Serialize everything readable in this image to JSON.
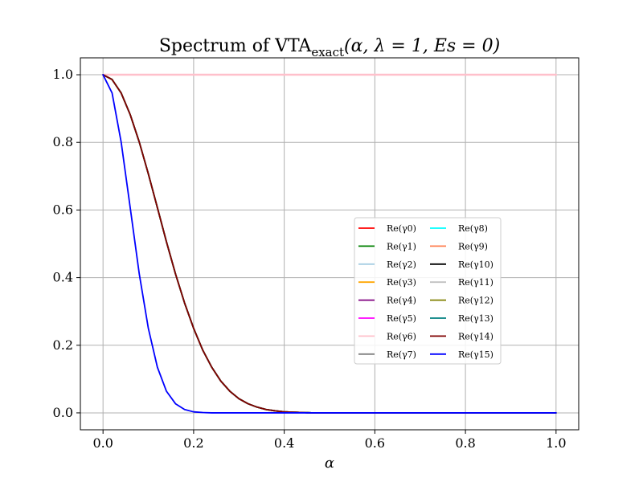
{
  "chart_data": {
    "type": "line",
    "title": "Spectrum of VTA_exact(α, λ = 1,  Es = 0)",
    "title_parts": {
      "main": "Spectrum of VTA",
      "subscript": "exact",
      "args": "(α, λ = 1,  Es = 0)"
    },
    "xlabel": "α",
    "ylabel": "",
    "xlim": [
      -0.05,
      1.05
    ],
    "ylim": [
      -0.05,
      1.05
    ],
    "xticks": [
      0.0,
      0.2,
      0.4,
      0.6,
      0.8,
      1.0
    ],
    "yticks": [
      0.0,
      0.2,
      0.4,
      0.6,
      0.8,
      1.0
    ],
    "xtick_labels": [
      "0.0",
      "0.2",
      "0.4",
      "0.6",
      "0.8",
      "1.0"
    ],
    "ytick_labels": [
      "0.0",
      "0.2",
      "0.4",
      "0.6",
      "0.8",
      "1.0"
    ],
    "grid": true,
    "legend_position": "center-right",
    "legend_columns": 2,
    "x": [
      0.0,
      0.02,
      0.04,
      0.06,
      0.08,
      0.1,
      0.12,
      0.14,
      0.16,
      0.18,
      0.2,
      0.22,
      0.24,
      0.26,
      0.28,
      0.3,
      0.32,
      0.34,
      0.36,
      0.38,
      0.4,
      0.42,
      0.44,
      0.46,
      0.48,
      0.5,
      0.55,
      0.6,
      0.7,
      0.8,
      0.9,
      1.0
    ],
    "series": [
      {
        "name": "Re(γ0)",
        "color": "#ff0000",
        "values": [
          1.0,
          1.0,
          1.0,
          1.0,
          1.0,
          1.0,
          1.0,
          1.0,
          1.0,
          1.0,
          1.0,
          1.0,
          1.0,
          1.0,
          1.0,
          1.0,
          1.0,
          1.0,
          1.0,
          1.0,
          1.0,
          1.0,
          1.0,
          1.0,
          1.0,
          1.0,
          1.0,
          1.0,
          1.0,
          1.0,
          1.0,
          1.0
        ]
      },
      {
        "name": "Re(γ1)",
        "color": "#008000",
        "values": [
          1.0,
          1.0,
          1.0,
          1.0,
          1.0,
          1.0,
          1.0,
          1.0,
          1.0,
          1.0,
          1.0,
          1.0,
          1.0,
          1.0,
          1.0,
          1.0,
          1.0,
          1.0,
          1.0,
          1.0,
          1.0,
          1.0,
          1.0,
          1.0,
          1.0,
          1.0,
          1.0,
          1.0,
          1.0,
          1.0,
          1.0,
          1.0
        ]
      },
      {
        "name": "Re(γ2)",
        "color": "#a6cee3",
        "values": [
          1.0,
          1.0,
          1.0,
          1.0,
          1.0,
          1.0,
          1.0,
          1.0,
          1.0,
          1.0,
          1.0,
          1.0,
          1.0,
          1.0,
          1.0,
          1.0,
          1.0,
          1.0,
          1.0,
          1.0,
          1.0,
          1.0,
          1.0,
          1.0,
          1.0,
          1.0,
          1.0,
          1.0,
          1.0,
          1.0,
          1.0,
          1.0
        ]
      },
      {
        "name": "Re(γ3)",
        "color": "#ffa500",
        "values": [
          1.0,
          1.0,
          1.0,
          1.0,
          1.0,
          1.0,
          1.0,
          1.0,
          1.0,
          1.0,
          1.0,
          1.0,
          1.0,
          1.0,
          1.0,
          1.0,
          1.0,
          1.0,
          1.0,
          1.0,
          1.0,
          1.0,
          1.0,
          1.0,
          1.0,
          1.0,
          1.0,
          1.0,
          1.0,
          1.0,
          1.0,
          1.0
        ]
      },
      {
        "name": "Re(γ4)",
        "color": "#800080",
        "values": [
          1.0,
          1.0,
          1.0,
          1.0,
          1.0,
          1.0,
          1.0,
          1.0,
          1.0,
          1.0,
          1.0,
          1.0,
          1.0,
          1.0,
          1.0,
          1.0,
          1.0,
          1.0,
          1.0,
          1.0,
          1.0,
          1.0,
          1.0,
          1.0,
          1.0,
          1.0,
          1.0,
          1.0,
          1.0,
          1.0,
          1.0,
          1.0
        ]
      },
      {
        "name": "Re(γ5)",
        "color": "#ff00ff",
        "values": [
          1.0,
          1.0,
          1.0,
          1.0,
          1.0,
          1.0,
          1.0,
          1.0,
          1.0,
          1.0,
          1.0,
          1.0,
          1.0,
          1.0,
          1.0,
          1.0,
          1.0,
          1.0,
          1.0,
          1.0,
          1.0,
          1.0,
          1.0,
          1.0,
          1.0,
          1.0,
          1.0,
          1.0,
          1.0,
          1.0,
          1.0,
          1.0
        ]
      },
      {
        "name": "Re(γ6)",
        "color": "#ffc0cb",
        "values": [
          1.0,
          1.0,
          1.0,
          1.0,
          1.0,
          1.0,
          1.0,
          1.0,
          1.0,
          1.0,
          1.0,
          1.0,
          1.0,
          1.0,
          1.0,
          1.0,
          1.0,
          1.0,
          1.0,
          1.0,
          1.0,
          1.0,
          1.0,
          1.0,
          1.0,
          1.0,
          1.0,
          1.0,
          1.0,
          1.0,
          1.0,
          1.0
        ]
      },
      {
        "name": "Re(γ7)",
        "color": "#808080",
        "values": [
          1.0,
          0.986,
          0.946,
          0.882,
          0.801,
          0.707,
          0.607,
          0.506,
          0.411,
          0.325,
          0.25,
          0.186,
          0.135,
          0.094,
          0.064,
          0.042,
          0.027,
          0.017,
          0.01,
          0.006,
          0.003,
          0.002,
          0.001,
          0.0,
          0.0,
          0.0,
          0.0,
          0.0,
          0.0,
          0.0,
          0.0,
          0.0
        ]
      },
      {
        "name": "Re(γ8)",
        "color": "#00ffff",
        "values": [
          1.0,
          0.986,
          0.946,
          0.882,
          0.801,
          0.707,
          0.607,
          0.506,
          0.411,
          0.325,
          0.25,
          0.186,
          0.135,
          0.094,
          0.064,
          0.042,
          0.027,
          0.017,
          0.01,
          0.006,
          0.003,
          0.002,
          0.001,
          0.0,
          0.0,
          0.0,
          0.0,
          0.0,
          0.0,
          0.0,
          0.0,
          0.0
        ]
      },
      {
        "name": "Re(γ9)",
        "color": "#ff7f50",
        "values": [
          1.0,
          0.986,
          0.946,
          0.882,
          0.801,
          0.707,
          0.607,
          0.506,
          0.411,
          0.325,
          0.25,
          0.186,
          0.135,
          0.094,
          0.064,
          0.042,
          0.027,
          0.017,
          0.01,
          0.006,
          0.003,
          0.002,
          0.001,
          0.0,
          0.0,
          0.0,
          0.0,
          0.0,
          0.0,
          0.0,
          0.0,
          0.0
        ]
      },
      {
        "name": "Re(γ10)",
        "color": "#000000",
        "values": [
          1.0,
          0.986,
          0.946,
          0.882,
          0.801,
          0.707,
          0.607,
          0.506,
          0.411,
          0.325,
          0.25,
          0.186,
          0.135,
          0.094,
          0.064,
          0.042,
          0.027,
          0.017,
          0.01,
          0.006,
          0.003,
          0.002,
          0.001,
          0.0,
          0.0,
          0.0,
          0.0,
          0.0,
          0.0,
          0.0,
          0.0,
          0.0
        ]
      },
      {
        "name": "Re(γ11)",
        "color": "#c0c0c0",
        "values": [
          1.0,
          0.986,
          0.946,
          0.882,
          0.801,
          0.707,
          0.607,
          0.506,
          0.411,
          0.325,
          0.25,
          0.186,
          0.135,
          0.094,
          0.064,
          0.042,
          0.027,
          0.017,
          0.01,
          0.006,
          0.003,
          0.002,
          0.001,
          0.0,
          0.0,
          0.0,
          0.0,
          0.0,
          0.0,
          0.0,
          0.0,
          0.0
        ]
      },
      {
        "name": "Re(γ12)",
        "color": "#808000",
        "values": [
          1.0,
          0.986,
          0.946,
          0.882,
          0.801,
          0.707,
          0.607,
          0.506,
          0.411,
          0.325,
          0.25,
          0.186,
          0.135,
          0.094,
          0.064,
          0.042,
          0.027,
          0.017,
          0.01,
          0.006,
          0.003,
          0.002,
          0.001,
          0.0,
          0.0,
          0.0,
          0.0,
          0.0,
          0.0,
          0.0,
          0.0,
          0.0
        ]
      },
      {
        "name": "Re(γ13)",
        "color": "#008080",
        "values": [
          1.0,
          0.986,
          0.946,
          0.882,
          0.801,
          0.707,
          0.607,
          0.506,
          0.411,
          0.325,
          0.25,
          0.186,
          0.135,
          0.094,
          0.064,
          0.042,
          0.027,
          0.017,
          0.01,
          0.006,
          0.003,
          0.002,
          0.001,
          0.0,
          0.0,
          0.0,
          0.0,
          0.0,
          0.0,
          0.0,
          0.0,
          0.0
        ]
      },
      {
        "name": "Re(γ14)",
        "color": "#800000",
        "values": [
          1.0,
          0.986,
          0.946,
          0.882,
          0.801,
          0.707,
          0.607,
          0.506,
          0.411,
          0.325,
          0.25,
          0.186,
          0.135,
          0.094,
          0.064,
          0.042,
          0.027,
          0.017,
          0.01,
          0.006,
          0.003,
          0.002,
          0.001,
          0.0,
          0.0,
          0.0,
          0.0,
          0.0,
          0.0,
          0.0,
          0.0,
          0.0
        ]
      },
      {
        "name": "Re(γ15)",
        "color": "#0000ff",
        "values": [
          1.0,
          0.946,
          0.801,
          0.607,
          0.411,
          0.25,
          0.135,
          0.064,
          0.027,
          0.01,
          0.003,
          0.001,
          0.0,
          0.0,
          0.0,
          0.0,
          0.0,
          0.0,
          0.0,
          0.0,
          0.0,
          0.0,
          0.0,
          0.0,
          0.0,
          0.0,
          0.0,
          0.0,
          0.0,
          0.0,
          0.0,
          0.0
        ]
      }
    ]
  }
}
